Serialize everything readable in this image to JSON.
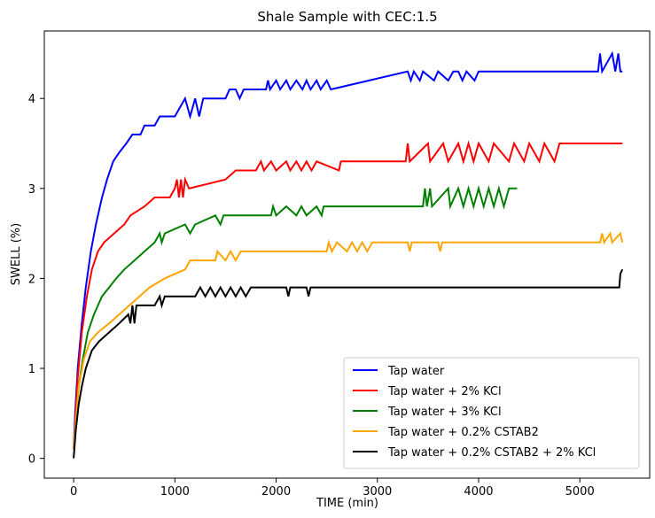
{
  "chart_data": {
    "type": "line",
    "title": "Shale Sample with CEC:1.5",
    "xlabel": "TIME (min)",
    "ylabel": "SWELL (%)",
    "xlim": [
      -290,
      5690
    ],
    "ylim": [
      -0.22,
      4.75
    ],
    "xticks": [
      0,
      1000,
      2000,
      3000,
      4000,
      5000
    ],
    "yticks": [
      0,
      1,
      2,
      3,
      4
    ],
    "grid": false,
    "legend_position": "lower-right",
    "series": [
      {
        "name": "Tap water",
        "color": "#0000ff",
        "points": [
          [
            0,
            0.1
          ],
          [
            15,
            0.5
          ],
          [
            40,
            1.0
          ],
          [
            80,
            1.5
          ],
          [
            120,
            1.9
          ],
          [
            170,
            2.3
          ],
          [
            220,
            2.6
          ],
          [
            280,
            2.9
          ],
          [
            330,
            3.1
          ],
          [
            390,
            3.3
          ],
          [
            450,
            3.4
          ],
          [
            520,
            3.5
          ],
          [
            580,
            3.6
          ],
          [
            660,
            3.6
          ],
          [
            700,
            3.7
          ],
          [
            800,
            3.7
          ],
          [
            850,
            3.8
          ],
          [
            1000,
            3.8
          ],
          [
            1050,
            3.9
          ],
          [
            1100,
            4.0
          ],
          [
            1150,
            3.8
          ],
          [
            1200,
            4.0
          ],
          [
            1240,
            3.8
          ],
          [
            1280,
            4.0
          ],
          [
            1500,
            4.0
          ],
          [
            1540,
            4.1
          ],
          [
            1600,
            4.1
          ],
          [
            1640,
            4.0
          ],
          [
            1680,
            4.1
          ],
          [
            1900,
            4.1
          ],
          [
            1920,
            4.2
          ],
          [
            1940,
            4.1
          ],
          [
            2000,
            4.2
          ],
          [
            2040,
            4.1
          ],
          [
            2100,
            4.2
          ],
          [
            2140,
            4.1
          ],
          [
            2200,
            4.2
          ],
          [
            2260,
            4.1
          ],
          [
            2300,
            4.2
          ],
          [
            2340,
            4.1
          ],
          [
            2400,
            4.2
          ],
          [
            2440,
            4.1
          ],
          [
            2500,
            4.2
          ],
          [
            2540,
            4.1
          ],
          [
            3300,
            4.3
          ],
          [
            3330,
            4.2
          ],
          [
            3360,
            4.3
          ],
          [
            3420,
            4.2
          ],
          [
            3450,
            4.3
          ],
          [
            3560,
            4.2
          ],
          [
            3600,
            4.3
          ],
          [
            3700,
            4.2
          ],
          [
            3750,
            4.3
          ],
          [
            3800,
            4.3
          ],
          [
            3840,
            4.2
          ],
          [
            3880,
            4.3
          ],
          [
            3960,
            4.2
          ],
          [
            4000,
            4.3
          ],
          [
            5180,
            4.3
          ],
          [
            5200,
            4.5
          ],
          [
            5220,
            4.3
          ],
          [
            5320,
            4.5
          ],
          [
            5350,
            4.3
          ],
          [
            5380,
            4.5
          ],
          [
            5400,
            4.3
          ],
          [
            5420,
            4.3
          ]
        ]
      },
      {
        "name": "Tap water + 2% KCl",
        "color": "#ff0000",
        "points": [
          [
            0,
            0.1
          ],
          [
            15,
            0.4
          ],
          [
            40,
            0.9
          ],
          [
            80,
            1.4
          ],
          [
            130,
            1.8
          ],
          [
            180,
            2.1
          ],
          [
            240,
            2.3
          ],
          [
            300,
            2.4
          ],
          [
            400,
            2.5
          ],
          [
            500,
            2.6
          ],
          [
            560,
            2.7
          ],
          [
            700,
            2.8
          ],
          [
            800,
            2.9
          ],
          [
            950,
            2.9
          ],
          [
            1000,
            3.0
          ],
          [
            1020,
            3.1
          ],
          [
            1040,
            2.9
          ],
          [
            1060,
            3.1
          ],
          [
            1080,
            2.9
          ],
          [
            1100,
            3.1
          ],
          [
            1140,
            3.0
          ],
          [
            1500,
            3.1
          ],
          [
            1600,
            3.2
          ],
          [
            1800,
            3.2
          ],
          [
            1850,
            3.3
          ],
          [
            1880,
            3.2
          ],
          [
            1950,
            3.3
          ],
          [
            2000,
            3.2
          ],
          [
            2100,
            3.3
          ],
          [
            2140,
            3.2
          ],
          [
            2200,
            3.3
          ],
          [
            2250,
            3.2
          ],
          [
            2300,
            3.3
          ],
          [
            2350,
            3.2
          ],
          [
            2400,
            3.3
          ],
          [
            2620,
            3.2
          ],
          [
            2640,
            3.3
          ],
          [
            3280,
            3.3
          ],
          [
            3300,
            3.5
          ],
          [
            3320,
            3.3
          ],
          [
            3500,
            3.5
          ],
          [
            3520,
            3.3
          ],
          [
            3650,
            3.5
          ],
          [
            3700,
            3.3
          ],
          [
            3800,
            3.5
          ],
          [
            3850,
            3.3
          ],
          [
            3900,
            3.5
          ],
          [
            3950,
            3.3
          ],
          [
            4000,
            3.5
          ],
          [
            4100,
            3.3
          ],
          [
            4150,
            3.5
          ],
          [
            4300,
            3.3
          ],
          [
            4350,
            3.5
          ],
          [
            4450,
            3.3
          ],
          [
            4500,
            3.5
          ],
          [
            4600,
            3.3
          ],
          [
            4650,
            3.5
          ],
          [
            4750,
            3.3
          ],
          [
            4800,
            3.5
          ],
          [
            5420,
            3.5
          ]
        ]
      },
      {
        "name": "Tap water + 3% KCl",
        "color": "#008000",
        "points": [
          [
            0,
            0.1
          ],
          [
            20,
            0.4
          ],
          [
            50,
            0.8
          ],
          [
            90,
            1.1
          ],
          [
            140,
            1.4
          ],
          [
            200,
            1.6
          ],
          [
            280,
            1.8
          ],
          [
            350,
            1.9
          ],
          [
            420,
            2.0
          ],
          [
            500,
            2.1
          ],
          [
            600,
            2.2
          ],
          [
            700,
            2.3
          ],
          [
            800,
            2.4
          ],
          [
            850,
            2.5
          ],
          [
            870,
            2.4
          ],
          [
            900,
            2.5
          ],
          [
            1100,
            2.6
          ],
          [
            1150,
            2.5
          ],
          [
            1200,
            2.6
          ],
          [
            1400,
            2.7
          ],
          [
            1450,
            2.6
          ],
          [
            1480,
            2.7
          ],
          [
            1950,
            2.7
          ],
          [
            1970,
            2.8
          ],
          [
            2000,
            2.7
          ],
          [
            2100,
            2.8
          ],
          [
            2200,
            2.7
          ],
          [
            2250,
            2.8
          ],
          [
            2300,
            2.7
          ],
          [
            2400,
            2.8
          ],
          [
            2450,
            2.7
          ],
          [
            2470,
            2.8
          ],
          [
            3450,
            2.8
          ],
          [
            3470,
            3.0
          ],
          [
            3490,
            2.8
          ],
          [
            3520,
            3.0
          ],
          [
            3540,
            2.8
          ],
          [
            3700,
            3.0
          ],
          [
            3720,
            2.8
          ],
          [
            3800,
            3.0
          ],
          [
            3850,
            2.8
          ],
          [
            3900,
            3.0
          ],
          [
            3950,
            2.8
          ],
          [
            4000,
            3.0
          ],
          [
            4050,
            2.8
          ],
          [
            4100,
            3.0
          ],
          [
            4150,
            2.8
          ],
          [
            4200,
            3.0
          ],
          [
            4250,
            2.8
          ],
          [
            4300,
            3.0
          ],
          [
            4380,
            3.0
          ]
        ]
      },
      {
        "name": "Tap water + 0.2% CSTAB2",
        "color": "#ffa500",
        "points": [
          [
            0,
            0.1
          ],
          [
            20,
            0.4
          ],
          [
            50,
            0.8
          ],
          [
            100,
            1.1
          ],
          [
            160,
            1.3
          ],
          [
            240,
            1.4
          ],
          [
            350,
            1.5
          ],
          [
            450,
            1.6
          ],
          [
            550,
            1.7
          ],
          [
            650,
            1.8
          ],
          [
            750,
            1.9
          ],
          [
            900,
            2.0
          ],
          [
            1100,
            2.1
          ],
          [
            1150,
            2.2
          ],
          [
            1400,
            2.2
          ],
          [
            1420,
            2.3
          ],
          [
            1500,
            2.2
          ],
          [
            1550,
            2.3
          ],
          [
            1600,
            2.2
          ],
          [
            1650,
            2.3
          ],
          [
            2500,
            2.3
          ],
          [
            2520,
            2.4
          ],
          [
            2550,
            2.3
          ],
          [
            2600,
            2.4
          ],
          [
            2700,
            2.3
          ],
          [
            2750,
            2.4
          ],
          [
            2800,
            2.3
          ],
          [
            2850,
            2.4
          ],
          [
            2900,
            2.3
          ],
          [
            2950,
            2.4
          ],
          [
            3300,
            2.4
          ],
          [
            3320,
            2.3
          ],
          [
            3340,
            2.4
          ],
          [
            3600,
            2.4
          ],
          [
            3620,
            2.3
          ],
          [
            3640,
            2.4
          ],
          [
            5200,
            2.4
          ],
          [
            5220,
            2.5
          ],
          [
            5240,
            2.4
          ],
          [
            5300,
            2.5
          ],
          [
            5320,
            2.4
          ],
          [
            5400,
            2.5
          ],
          [
            5420,
            2.4
          ]
        ]
      },
      {
        "name": "Tap water + 0.2% CSTAB2 + 2% KCl",
        "color": "#000000",
        "points": [
          [
            0,
            0.0
          ],
          [
            20,
            0.3
          ],
          [
            50,
            0.6
          ],
          [
            80,
            0.8
          ],
          [
            120,
            1.0
          ],
          [
            180,
            1.2
          ],
          [
            250,
            1.3
          ],
          [
            350,
            1.4
          ],
          [
            450,
            1.5
          ],
          [
            540,
            1.6
          ],
          [
            560,
            1.5
          ],
          [
            580,
            1.7
          ],
          [
            600,
            1.5
          ],
          [
            620,
            1.7
          ],
          [
            700,
            1.7
          ],
          [
            800,
            1.7
          ],
          [
            850,
            1.8
          ],
          [
            870,
            1.7
          ],
          [
            900,
            1.8
          ],
          [
            1200,
            1.8
          ],
          [
            1250,
            1.9
          ],
          [
            1300,
            1.8
          ],
          [
            1350,
            1.9
          ],
          [
            1400,
            1.8
          ],
          [
            1450,
            1.9
          ],
          [
            1500,
            1.8
          ],
          [
            1550,
            1.9
          ],
          [
            1600,
            1.8
          ],
          [
            1650,
            1.9
          ],
          [
            1700,
            1.8
          ],
          [
            1750,
            1.9
          ],
          [
            2100,
            1.9
          ],
          [
            2120,
            1.8
          ],
          [
            2140,
            1.9
          ],
          [
            2300,
            1.9
          ],
          [
            2320,
            1.8
          ],
          [
            2340,
            1.9
          ],
          [
            5390,
            1.9
          ],
          [
            5400,
            2.05
          ],
          [
            5420,
            2.1
          ]
        ]
      }
    ]
  }
}
